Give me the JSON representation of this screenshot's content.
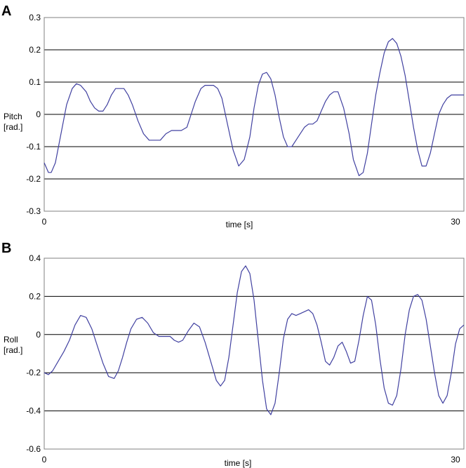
{
  "figure": {
    "series_color": "#4040a0"
  },
  "chart_data": [
    {
      "panel": "A",
      "type": "line",
      "xlabel": "time [s]",
      "ylabel_line1": "Pitch",
      "ylabel_line2": "[rad.]",
      "xlim": [
        0,
        30
      ],
      "ylim": [
        -0.3,
        0.3
      ],
      "x_ticks": [
        "0",
        "30"
      ],
      "y_ticks": [
        "0.3",
        "0.2",
        "0.1",
        "0",
        "-0.1",
        "-0.2",
        "-0.3"
      ],
      "y_tick_values": [
        0.3,
        0.2,
        0.1,
        0,
        -0.1,
        -0.2,
        -0.3
      ],
      "gridlines": [
        0.2,
        0.1,
        0,
        -0.1,
        -0.2
      ],
      "series": [
        {
          "x": [
            0,
            0.3,
            0.5,
            0.8,
            1.2,
            1.6,
            2.0,
            2.3,
            2.6,
            3.0,
            3.3,
            3.6,
            3.9,
            4.2,
            4.5,
            4.8,
            5.1,
            5.4,
            5.7,
            6.0,
            6.3,
            6.7,
            7.1,
            7.5,
            7.9,
            8.3,
            8.7,
            9.1,
            9.5,
            9.8,
            10.2,
            10.5,
            10.8,
            11.2,
            11.5,
            11.8,
            12.1,
            12.4,
            12.7,
            13.1,
            13.5,
            13.9,
            14.3,
            14.7,
            15.0,
            15.3,
            15.6,
            15.9,
            16.2,
            16.5,
            16.8,
            17.1,
            17.4,
            17.7,
            18.0,
            18.3,
            18.6,
            18.9,
            19.2,
            19.5,
            19.8,
            20.1,
            20.4,
            20.7,
            21.0,
            21.4,
            21.8,
            22.1,
            22.5,
            22.8,
            23.1,
            23.4,
            23.7,
            24.0,
            24.3,
            24.6,
            24.9,
            25.2,
            25.5,
            25.8,
            26.1,
            26.4,
            26.7,
            27.0,
            27.3,
            27.6,
            27.9,
            28.2,
            28.5,
            28.8,
            29.1,
            29.4,
            29.7,
            30.0
          ],
          "y": [
            -0.15,
            -0.18,
            -0.18,
            -0.15,
            -0.06,
            0.03,
            0.08,
            0.095,
            0.09,
            0.07,
            0.04,
            0.02,
            0.01,
            0.01,
            0.03,
            0.06,
            0.08,
            0.08,
            0.08,
            0.06,
            0.03,
            -0.02,
            -0.06,
            -0.08,
            -0.08,
            -0.08,
            -0.06,
            -0.05,
            -0.05,
            -0.05,
            -0.04,
            0.0,
            0.04,
            0.08,
            0.09,
            0.09,
            0.09,
            0.08,
            0.05,
            -0.03,
            -0.11,
            -0.16,
            -0.14,
            -0.07,
            0.02,
            0.09,
            0.125,
            0.13,
            0.11,
            0.06,
            -0.01,
            -0.07,
            -0.1,
            -0.1,
            -0.08,
            -0.06,
            -0.04,
            -0.03,
            -0.03,
            -0.02,
            0.01,
            0.04,
            0.06,
            0.07,
            0.07,
            0.02,
            -0.06,
            -0.14,
            -0.19,
            -0.18,
            -0.12,
            -0.03,
            0.06,
            0.13,
            0.19,
            0.225,
            0.235,
            0.22,
            0.18,
            0.12,
            0.04,
            -0.04,
            -0.11,
            -0.16,
            -0.16,
            -0.12,
            -0.06,
            0.0,
            0.03,
            0.05,
            0.06,
            0.06,
            0.06,
            0.06
          ],
          "x2": [
            24.3,
            24.6,
            24.9,
            25.2,
            25.5,
            25.8,
            26.1,
            26.4,
            26.7,
            27.0,
            27.3,
            27.6,
            27.9,
            28.2,
            28.5,
            28.8,
            29.1,
            29.4,
            29.7,
            30.0
          ]
        }
      ]
    },
    {
      "panel": "B",
      "type": "line",
      "xlabel": "time [s]",
      "ylabel_line1": "Roll",
      "ylabel_line2": "[rad.]",
      "xlim": [
        0,
        30
      ],
      "ylim": [
        -0.6,
        0.4
      ],
      "x_ticks": [
        "0",
        "30"
      ],
      "y_ticks": [
        "0.4",
        "0.2",
        "0",
        "-0.2",
        "-0.4",
        "-0.6"
      ],
      "y_tick_values": [
        0.4,
        0.2,
        0,
        -0.2,
        -0.4,
        -0.6
      ],
      "gridlines": [
        0.2,
        0,
        -0.2,
        -0.4
      ],
      "series": [
        {
          "x": [
            0,
            0.3,
            0.6,
            1.0,
            1.4,
            1.8,
            2.2,
            2.6,
            3.0,
            3.4,
            3.8,
            4.2,
            4.6,
            5.0,
            5.3,
            5.6,
            5.9,
            6.2,
            6.6,
            7.0,
            7.4,
            7.8,
            8.2,
            8.6,
            9.0,
            9.3,
            9.6,
            9.9,
            10.3,
            10.7,
            11.1,
            11.5,
            11.9,
            12.3,
            12.6,
            12.9,
            13.2,
            13.5,
            13.8,
            14.1,
            14.4,
            14.7,
            15.0,
            15.3,
            15.6,
            15.9,
            16.2,
            16.5,
            16.8,
            17.1,
            17.4,
            17.7,
            18.0,
            18.3,
            18.6,
            18.9,
            19.2,
            19.5,
            19.8,
            20.1,
            20.4,
            20.7,
            21.0,
            21.3,
            21.6,
            21.9,
            22.2,
            22.5,
            22.8,
            23.1,
            23.4,
            23.7,
            24.0,
            24.3,
            24.6,
            24.9,
            25.2,
            25.5,
            25.8,
            26.1,
            26.4,
            26.7,
            27.0,
            27.3,
            27.6,
            27.9,
            28.2,
            28.5,
            28.8,
            29.1,
            29.4,
            29.7,
            30.0
          ],
          "y": [
            -0.2,
            -0.21,
            -0.19,
            -0.14,
            -0.09,
            -0.03,
            0.05,
            0.1,
            0.09,
            0.03,
            -0.06,
            -0.15,
            -0.22,
            -0.23,
            -0.19,
            -0.12,
            -0.04,
            0.03,
            0.08,
            0.09,
            0.06,
            0.01,
            -0.01,
            -0.01,
            -0.01,
            -0.03,
            -0.04,
            -0.03,
            0.02,
            0.06,
            0.04,
            -0.04,
            -0.14,
            -0.24,
            -0.27,
            -0.24,
            -0.12,
            0.05,
            0.22,
            0.33,
            0.36,
            0.32,
            0.18,
            -0.03,
            -0.24,
            -0.39,
            -0.42,
            -0.36,
            -0.2,
            -0.02,
            0.08,
            0.11,
            0.1,
            0.11,
            0.12,
            0.13,
            0.11,
            0.05,
            -0.04,
            -0.14,
            -0.16,
            -0.12,
            -0.06,
            -0.04,
            -0.09,
            -0.15,
            -0.14,
            -0.03,
            0.1,
            0.2,
            0.18,
            0.05,
            -0.13,
            -0.28,
            -0.36,
            -0.37,
            -0.32,
            -0.18,
            0.0,
            0.13,
            0.2,
            0.21,
            0.18,
            0.08,
            -0.06,
            -0.2,
            -0.32,
            -0.36,
            -0.32,
            -0.2,
            -0.05,
            0.03,
            0.05
          ]
        }
      ]
    }
  ]
}
